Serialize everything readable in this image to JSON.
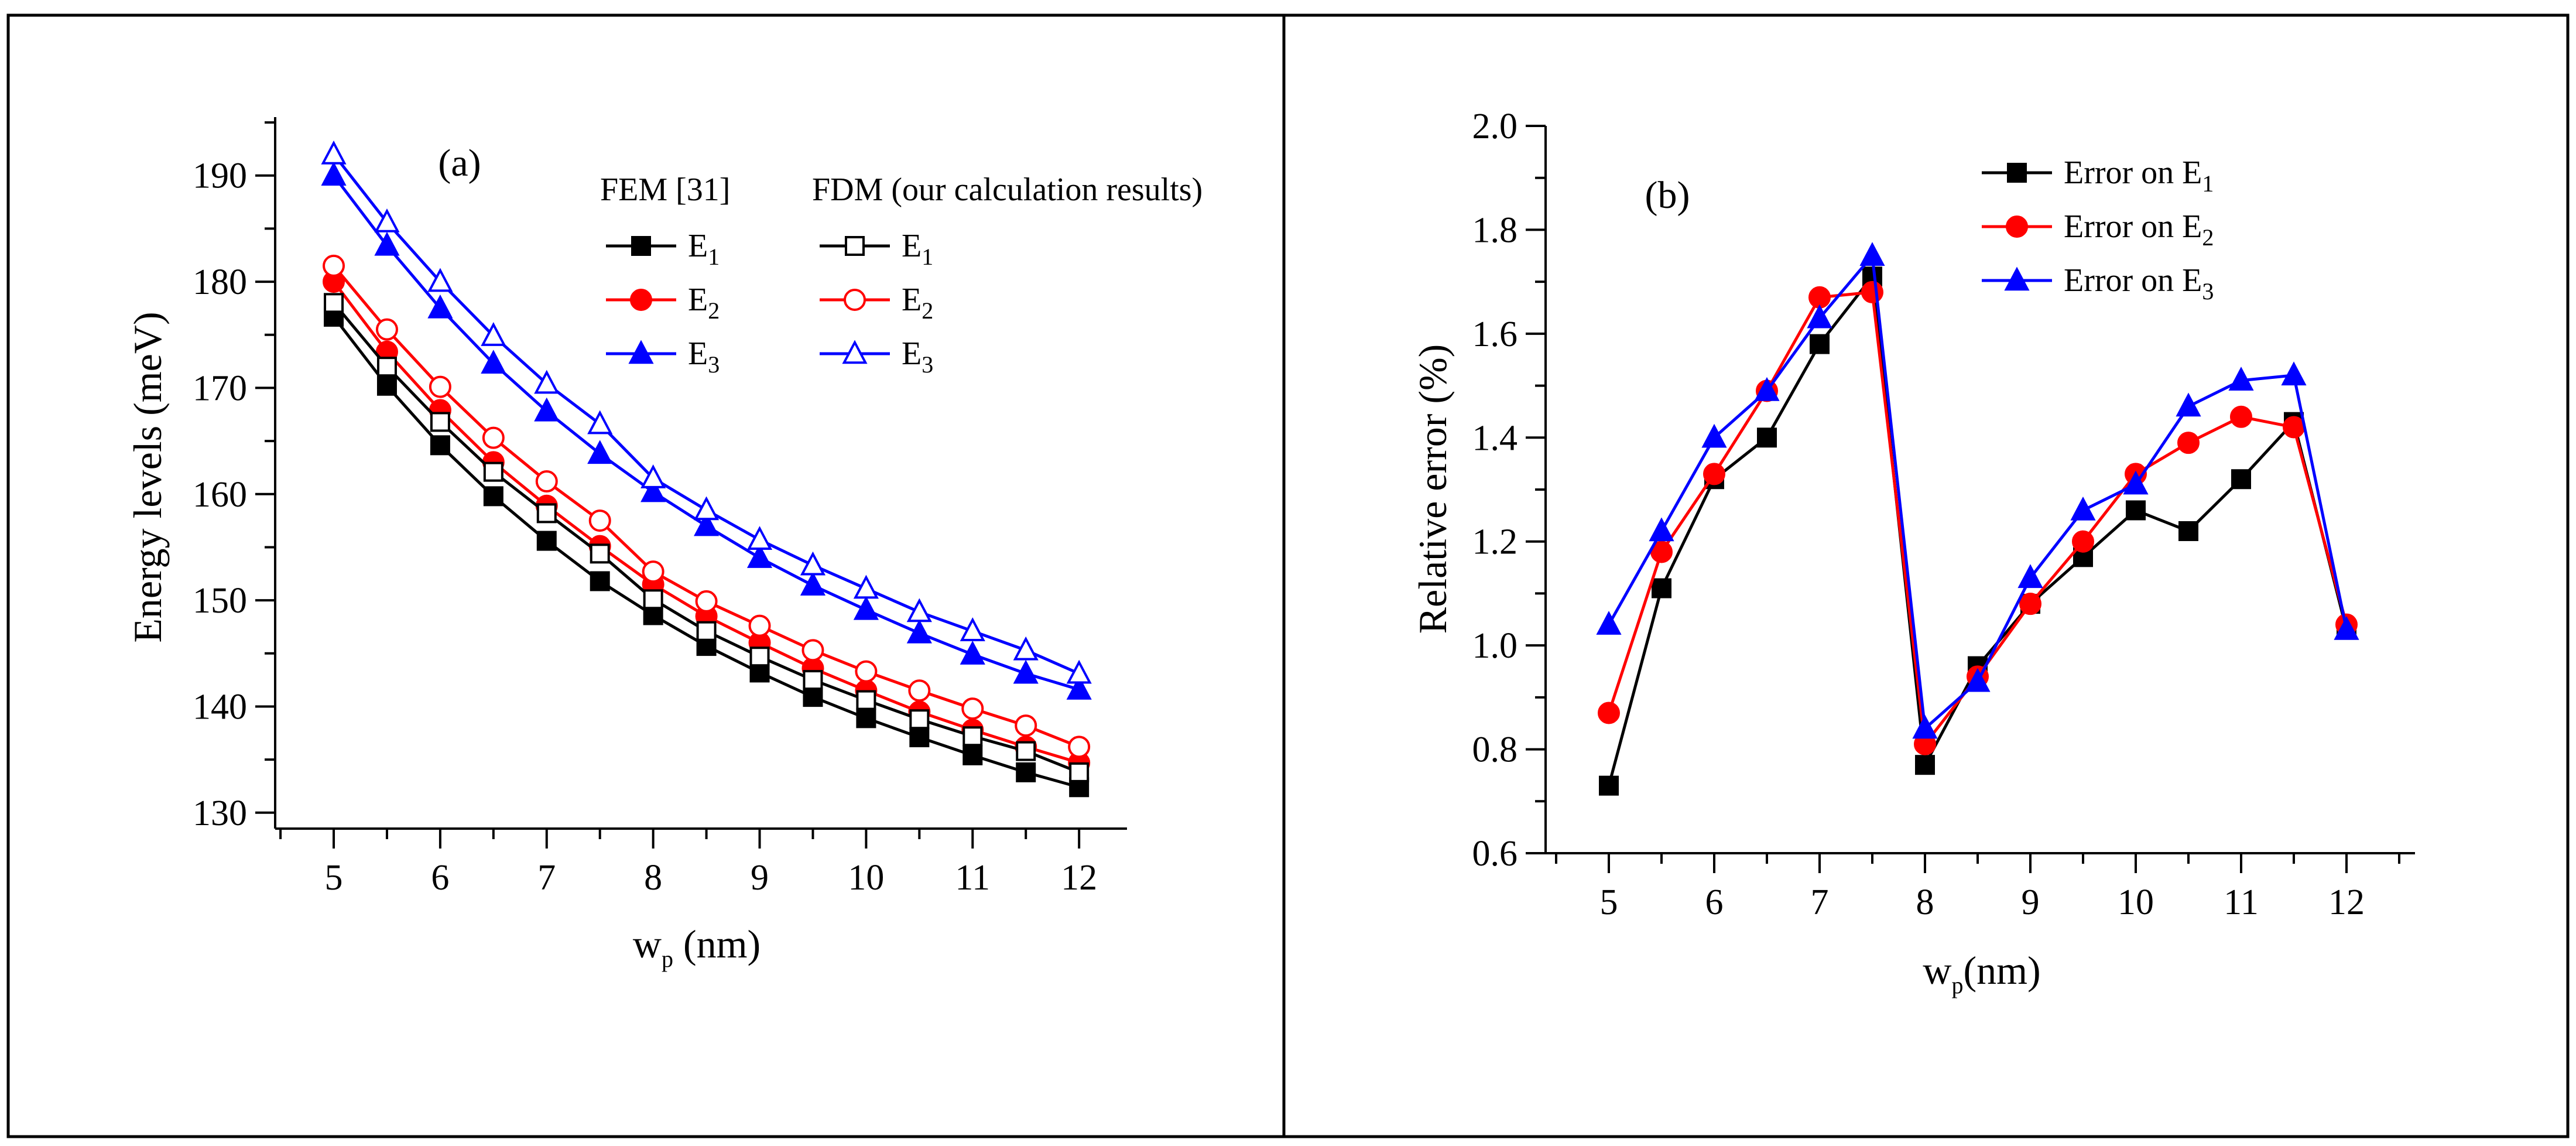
{
  "colors": {
    "black": "#000000",
    "red": "#ff0000",
    "blue": "#0000ff"
  },
  "chart_data": [
    {
      "type": "line",
      "panel": "(a)",
      "xlabel": {
        "base": "w",
        "sub": "p",
        "rest": " (nm)"
      },
      "ylabel": "Energy levels (meV)",
      "xlim": [
        4.45,
        12.45
      ],
      "ylim": [
        128.5,
        195.5
      ],
      "xticks": [
        5,
        6,
        7,
        8,
        9,
        10,
        11,
        12
      ],
      "yticks": [
        130,
        140,
        150,
        160,
        170,
        180,
        190
      ],
      "x": [
        5,
        5.5,
        6,
        6.5,
        7,
        7.5,
        8,
        8.5,
        9,
        9.5,
        10,
        10.5,
        11,
        11.5,
        12
      ],
      "legend": {
        "group_titles": [
          "FEM [31]",
          "FDM (our calculation results)"
        ],
        "placement": "top-right"
      },
      "series": [
        {
          "name": "E",
          "sub": "1",
          "group": "FEM [31]",
          "color": "#000000",
          "marker": "square",
          "filled": true,
          "values": [
            176.7,
            170.2,
            164.6,
            159.8,
            155.6,
            151.8,
            148.6,
            145.7,
            143.2,
            140.9,
            138.9,
            137.1,
            135.4,
            133.8,
            132.4
          ]
        },
        {
          "name": "E",
          "sub": "2",
          "group": "FEM [31]",
          "color": "#ff0000",
          "marker": "circle",
          "filled": true,
          "values": [
            180.0,
            173.4,
            167.9,
            163.0,
            158.9,
            155.1,
            151.5,
            148.5,
            146.0,
            143.6,
            141.5,
            139.5,
            137.8,
            136.2,
            134.7
          ]
        },
        {
          "name": "E",
          "sub": "3",
          "group": "FEM [31]",
          "color": "#0000ff",
          "marker": "triangle",
          "filled": true,
          "values": [
            190.0,
            183.4,
            177.5,
            172.3,
            167.8,
            163.8,
            160.2,
            157.0,
            154.0,
            151.4,
            149.1,
            146.9,
            144.9,
            143.1,
            141.6
          ]
        },
        {
          "name": "E",
          "sub": "1",
          "group": "FDM (our calculation results)",
          "color": "#000000",
          "marker": "square",
          "filled": false,
          "values": [
            178.0,
            172.0,
            166.8,
            162.1,
            158.2,
            154.4,
            150.1,
            147.1,
            144.7,
            142.5,
            140.6,
            138.8,
            137.2,
            135.8,
            133.8
          ]
        },
        {
          "name": "E",
          "sub": "2",
          "group": "FDM (our calculation results)",
          "color": "#ff0000",
          "marker": "circle",
          "filled": false,
          "values": [
            181.5,
            175.5,
            170.1,
            165.3,
            161.2,
            157.5,
            152.7,
            149.9,
            147.6,
            145.3,
            143.3,
            141.5,
            139.8,
            138.2,
            136.2
          ]
        },
        {
          "name": "E",
          "sub": "3",
          "group": "FDM (our calculation results)",
          "color": "#0000ff",
          "marker": "triangle",
          "filled": false,
          "values": [
            192.0,
            185.6,
            180.0,
            174.9,
            170.4,
            166.6,
            161.5,
            158.5,
            155.7,
            153.3,
            151.1,
            148.9,
            147.1,
            145.3,
            143.1
          ]
        }
      ]
    },
    {
      "type": "line",
      "panel": "(b)",
      "xlabel": {
        "base": "w",
        "sub": "p",
        "rest": "(nm)"
      },
      "ylabel": "Relative error (%)",
      "xlim": [
        4.4,
        12.65
      ],
      "ylim": [
        0.6,
        2.0
      ],
      "xticks": [
        5,
        6,
        7,
        8,
        9,
        10,
        11,
        12
      ],
      "yticks": [
        0.6,
        0.8,
        1.0,
        1.2,
        1.4,
        1.6,
        1.8,
        2.0
      ],
      "ytick_labels": [
        "0.6",
        "0.8",
        "1.0",
        "1.2",
        "1.4",
        "1.6",
        "1.8",
        "2.0"
      ],
      "x": [
        5,
        5.5,
        6,
        6.5,
        7,
        7.5,
        8,
        8.5,
        9,
        9.5,
        10,
        10.5,
        11,
        11.5,
        12
      ],
      "legend": {
        "placement": "top-right"
      },
      "series": [
        {
          "name": "Error on E",
          "sub": "1",
          "color": "#000000",
          "marker": "square",
          "filled": true,
          "values": [
            0.73,
            1.11,
            1.32,
            1.4,
            1.58,
            1.71,
            0.77,
            0.96,
            1.08,
            1.17,
            1.26,
            1.22,
            1.32,
            1.43,
            1.03
          ]
        },
        {
          "name": "Error on E",
          "sub": "2",
          "color": "#ff0000",
          "marker": "circle",
          "filled": true,
          "values": [
            0.87,
            1.18,
            1.33,
            1.49,
            1.67,
            1.68,
            0.81,
            0.94,
            1.08,
            1.2,
            1.33,
            1.39,
            1.44,
            1.42,
            1.04
          ]
        },
        {
          "name": "Error on E",
          "sub": "3",
          "color": "#0000ff",
          "marker": "triangle",
          "filled": true,
          "values": [
            1.04,
            1.22,
            1.4,
            1.49,
            1.63,
            1.75,
            0.84,
            0.93,
            1.13,
            1.26,
            1.31,
            1.46,
            1.51,
            1.52,
            1.03
          ]
        }
      ]
    }
  ]
}
